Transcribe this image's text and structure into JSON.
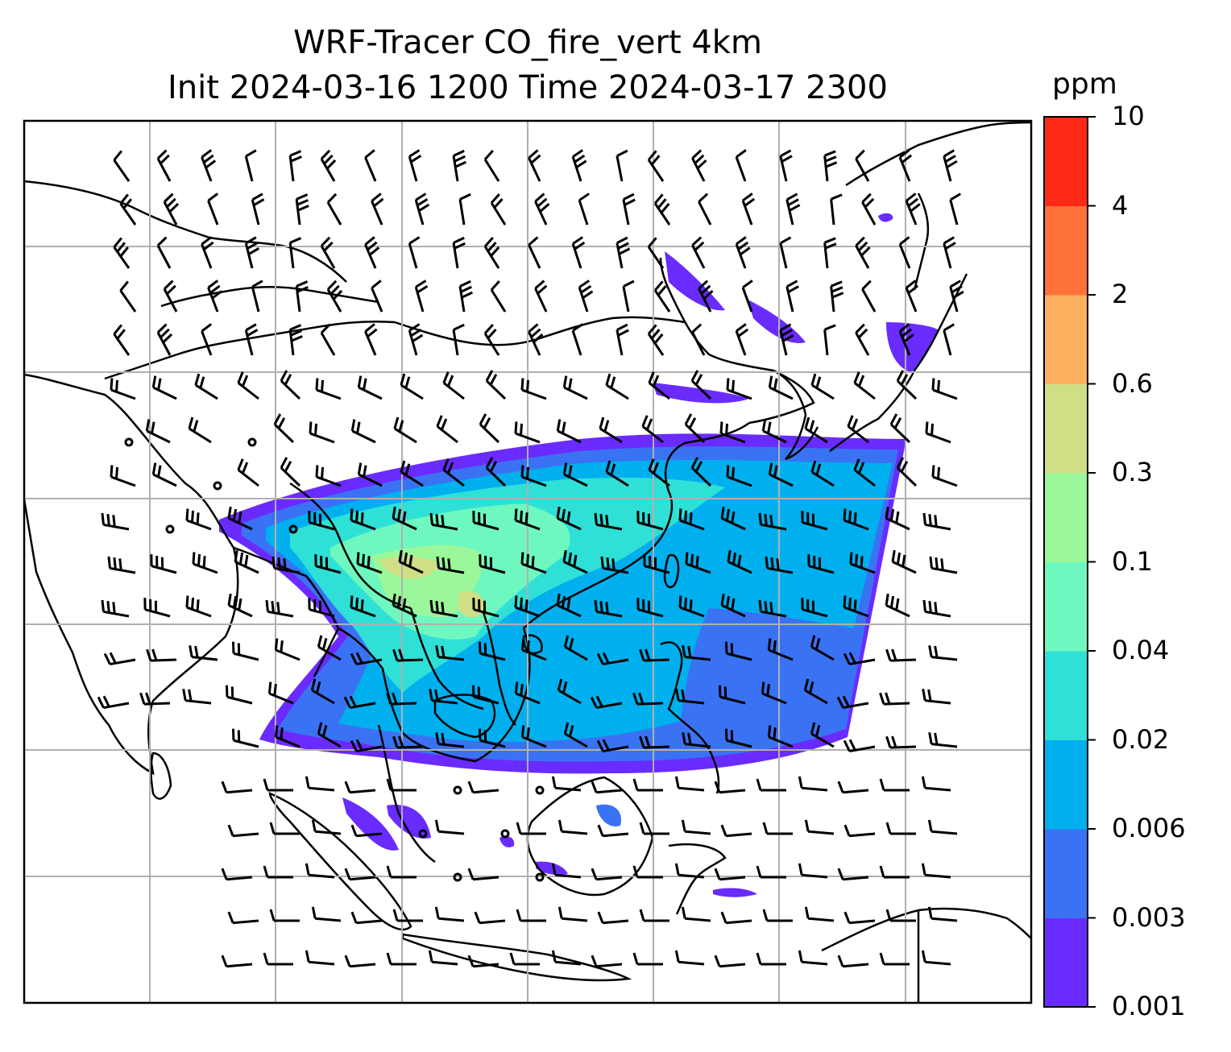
{
  "title": {
    "line1": "WRF-Tracer CO_fire_vert 4km",
    "line2": "Init 2024-03-16 1200 Time 2024-03-17 2300"
  },
  "colorbar": {
    "unit": "ppm",
    "levels": [
      "0.001",
      "0.003",
      "0.006",
      "0.02",
      "0.04",
      "0.1",
      "0.3",
      "0.6",
      "2",
      "4",
      "10"
    ],
    "colors": [
      "#6a2bff",
      "#3a72f4",
      "#00b0ee",
      "#2fe0d6",
      "#6ef8bf",
      "#9bf89a",
      "#cfdf86",
      "#fdb060",
      "#fe7139",
      "#fe2916"
    ]
  },
  "map": {
    "features": [
      "coastlines",
      "country borders",
      "lat/lon gridlines",
      "wind barbs",
      "CO concentration shading"
    ]
  }
}
